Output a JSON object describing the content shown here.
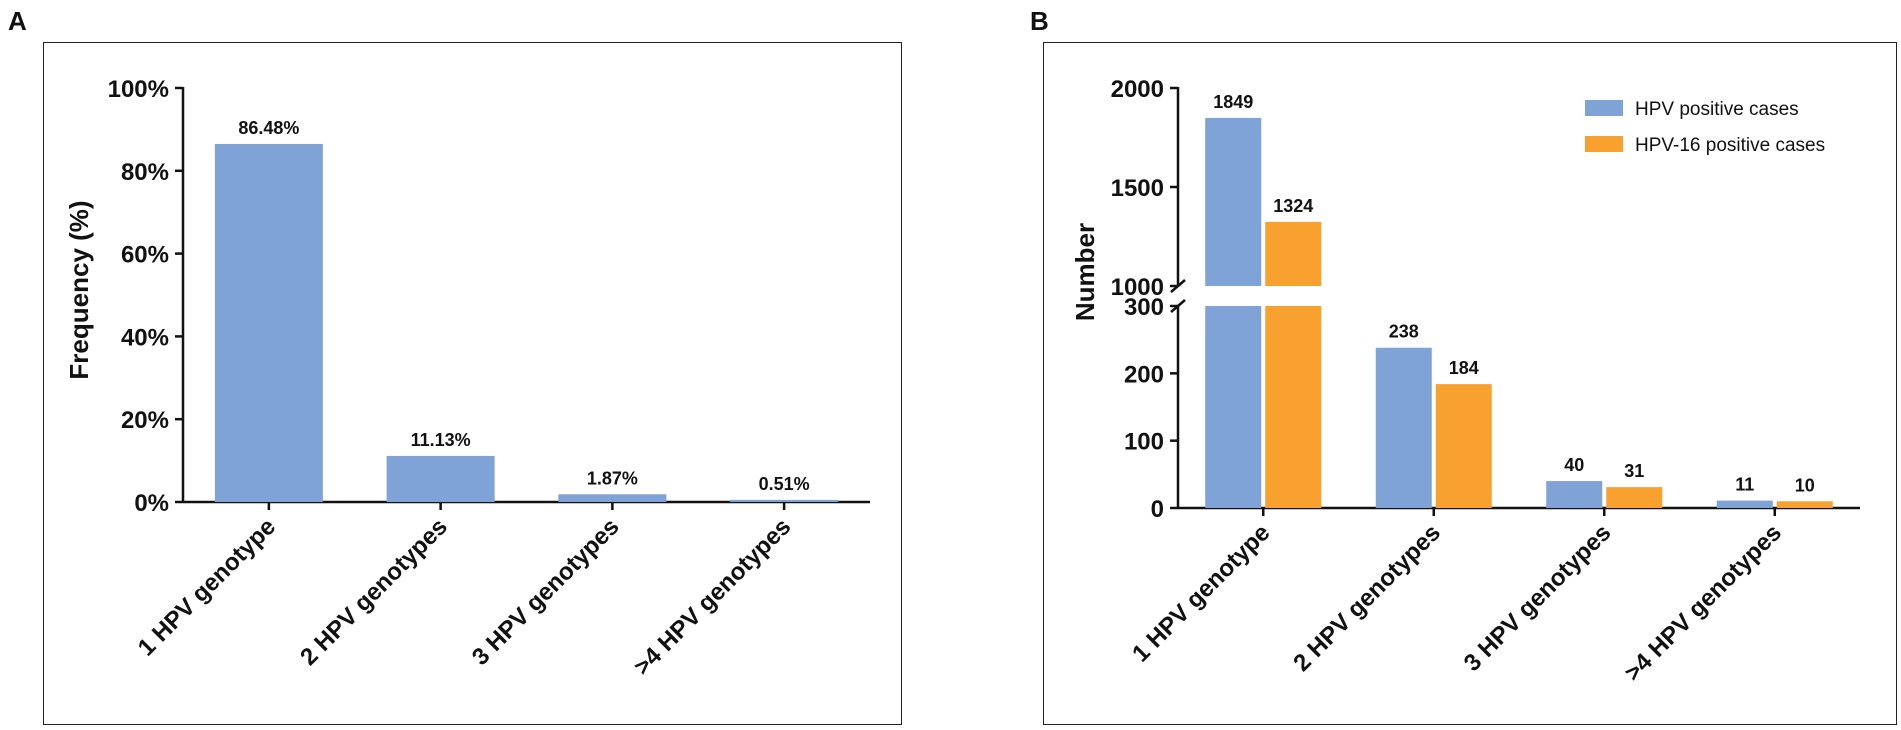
{
  "colors": {
    "blue": "#7FA2D7",
    "orange": "#F9A12F",
    "axis": "#111111"
  },
  "chart_data": [
    {
      "type": "bar",
      "panel": "A",
      "ylabel": "Frequency (%)",
      "xlabel": "",
      "ylim": [
        0,
        100
      ],
      "yticks": [
        0,
        20,
        40,
        60,
        80,
        100
      ],
      "ytick_labels": [
        "0%",
        "20%",
        "40%",
        "60%",
        "80%",
        "100%"
      ],
      "categories": [
        "1 HPV genotype",
        "2 HPV genotypes",
        "3 HPV genotypes",
        ">4 HPV genotypes"
      ],
      "values": [
        86.48,
        11.13,
        1.87,
        0.51
      ],
      "value_labels": [
        "86.48%",
        "11.13%",
        "1.87%",
        "0.51%"
      ]
    },
    {
      "type": "bar",
      "panel": "B",
      "ylabel": "Number",
      "xlabel": "",
      "axis_break": {
        "lower": [
          0,
          300
        ],
        "upper": [
          1000,
          2000
        ]
      },
      "lower_yticks": [
        0,
        100,
        200,
        300
      ],
      "upper_yticks": [
        1000,
        1500,
        2000
      ],
      "categories": [
        "1 HPV genotype",
        "2 HPV genotypes",
        "3 HPV genotypes",
        ">4 HPV genotypes"
      ],
      "series": [
        {
          "name": "HPV positive cases",
          "values": [
            1849,
            238,
            40,
            11
          ]
        },
        {
          "name": "HPV-16 positive cases",
          "values": [
            1324,
            184,
            31,
            10
          ]
        }
      ],
      "legend_position": "top-right"
    }
  ]
}
